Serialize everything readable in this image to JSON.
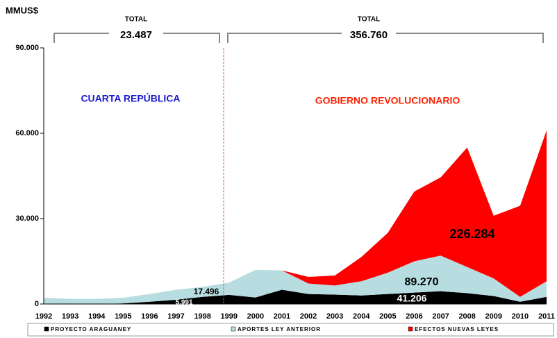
{
  "chart_data": {
    "type": "stacked_area",
    "y_label": "MMUS$",
    "categories": [
      "1992",
      "1993",
      "1994",
      "1995",
      "1996",
      "1997",
      "1998",
      "1999",
      "2000",
      "2001",
      "2002",
      "2003",
      "2004",
      "2005",
      "2006",
      "2007",
      "2008",
      "2009",
      "2010",
      "2011"
    ],
    "series": [
      {
        "name": "PROYECTO ARAGUANEY",
        "color": "#000000",
        "values": [
          0,
          0,
          0,
          200,
          800,
          1500,
          2500,
          3200,
          2300,
          5000,
          3500,
          3300,
          3000,
          3500,
          4000,
          4500,
          3800,
          2800,
          800,
          2500
        ]
      },
      {
        "name": "APORTES LEY ANTERIOR",
        "color": "#b7dde0",
        "values": [
          2200,
          1800,
          1800,
          2000,
          2700,
          3500,
          3500,
          4300,
          9700,
          6800,
          3700,
          3200,
          5000,
          7500,
          11000,
          12500,
          9200,
          6200,
          1700,
          5500
        ]
      },
      {
        "name": "EFECTOS NUEVAS LEYES",
        "color": "#ff0000",
        "values": [
          0,
          0,
          0,
          0,
          0,
          0,
          0,
          0,
          0,
          0,
          2300,
          3500,
          8500,
          14000,
          24500,
          27500,
          42000,
          22000,
          32000,
          53000
        ]
      }
    ],
    "ylim": [
      0,
      90000
    ],
    "yticks": [
      {
        "value": 0,
        "label": "0"
      },
      {
        "value": 30000,
        "label": "30.000"
      },
      {
        "value": 60000,
        "label": "60.000"
      },
      {
        "value": 90000,
        "label": "90.000"
      }
    ],
    "annotations": [
      "TOTAL",
      "23.487",
      "TOTAL",
      "356.760",
      "CUARTA REPÚBLICA",
      "GOBIERNO REVOLUCIONARIO",
      "226.284",
      "89.270",
      "41.206",
      "17.496",
      "5.991"
    ]
  }
}
